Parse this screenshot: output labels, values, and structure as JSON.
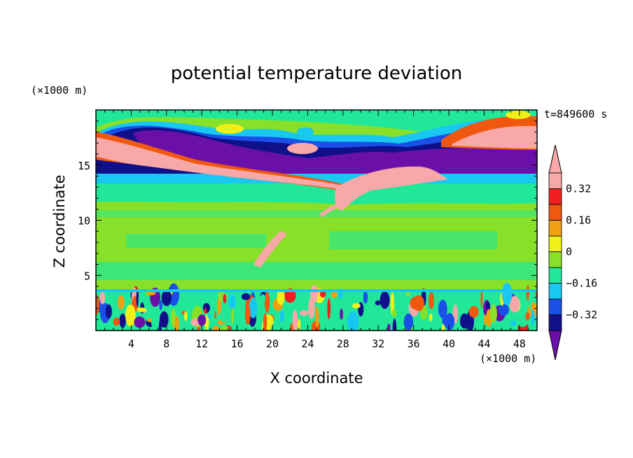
{
  "chart_data": {
    "type": "heatmap",
    "title": "potential temperature deviation",
    "xlabel": "X coordinate",
    "ylabel": "Z coordinate",
    "x_unit": "(×1000 m)",
    "y_unit": "(×1000 m)",
    "time_label": "t=849600 s",
    "xlim": [
      0,
      50
    ],
    "ylim": [
      0,
      20
    ],
    "x_ticks": [
      4,
      8,
      12,
      16,
      20,
      24,
      28,
      32,
      36,
      40,
      44,
      48
    ],
    "y_ticks": [
      5,
      10,
      15
    ],
    "colorbar": {
      "levels": [
        -0.4,
        -0.32,
        -0.24,
        -0.16,
        -0.08,
        0,
        0.08,
        0.16,
        0.24,
        0.32,
        0.4
      ],
      "tick_labels": [
        "0.32",
        "0.16",
        "0",
        "−0.16",
        "−0.32"
      ],
      "tick_values": [
        0.32,
        0.16,
        0,
        -0.16,
        -0.32
      ],
      "colors": [
        "#6a10a8",
        "#10108a",
        "#1a50e8",
        "#18c8f0",
        "#20e898",
        "#88e028",
        "#f0f018",
        "#f0a010",
        "#f05810",
        "#f02020",
        "#f8a8a8"
      ]
    }
  }
}
